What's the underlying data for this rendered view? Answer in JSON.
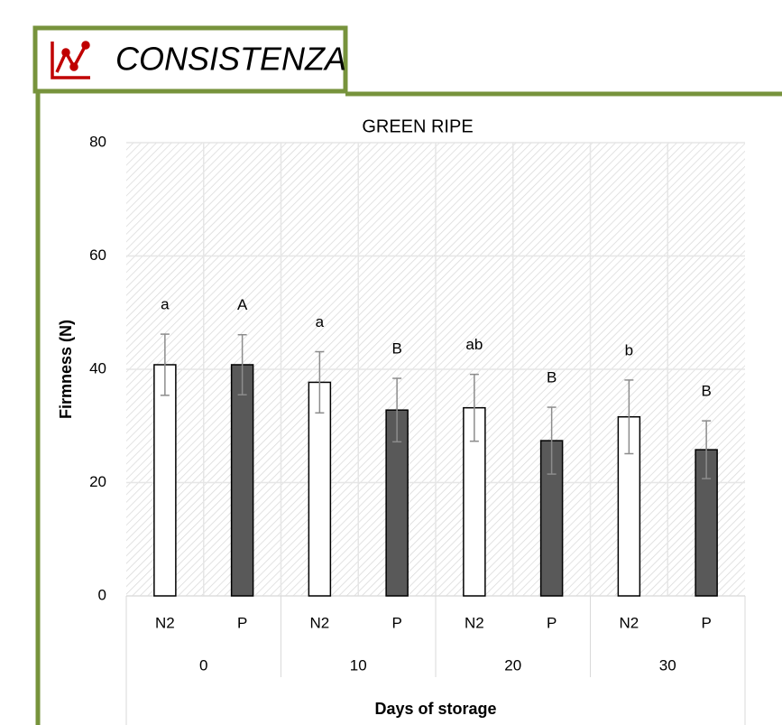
{
  "header": {
    "title": "CONSISTENZA"
  },
  "chart_data": {
    "type": "bar",
    "title": "GREEN RIPE",
    "x_label": "Days of storage",
    "y_label": "Firmness (N)",
    "categories": [
      "0",
      "10",
      "20",
      "30"
    ],
    "series": [
      {
        "name": "N2",
        "color": "#ffffff",
        "values": [
          40.8,
          37.7,
          33.2,
          31.6
        ],
        "errors": [
          5.4,
          5.4,
          5.9,
          6.5
        ],
        "letters": [
          "a",
          "a",
          "ab",
          "b"
        ]
      },
      {
        "name": "P",
        "color": "#595959",
        "values": [
          40.8,
          32.8,
          27.4,
          25.8
        ],
        "errors": [
          5.3,
          5.6,
          5.9,
          5.1
        ],
        "letters": [
          "A",
          "B",
          "B",
          "B"
        ]
      }
    ],
    "ylim": [
      0,
      80
    ],
    "yticks": [
      0,
      20,
      40,
      60,
      80
    ],
    "grid": true
  }
}
